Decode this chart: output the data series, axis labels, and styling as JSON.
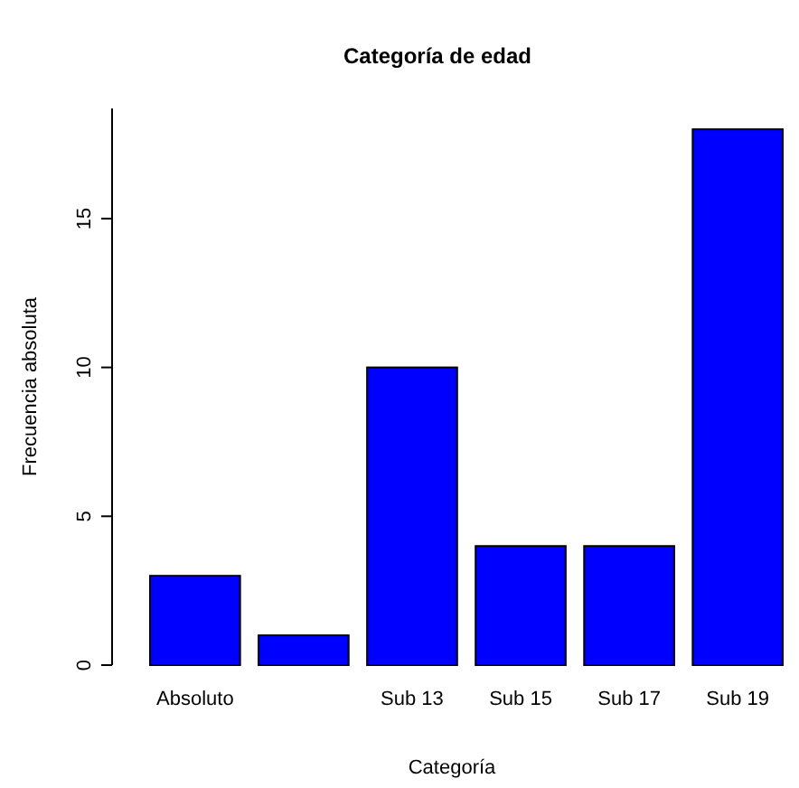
{
  "chart_data": {
    "type": "bar",
    "title": "Categoría de edad",
    "xlabel": "Categoría",
    "ylabel": "Frecuencia absoluta",
    "categories": [
      "Absoluto",
      null,
      "Sub 13",
      "Sub 15",
      "Sub 17",
      "Sub 19"
    ],
    "values": [
      3,
      1,
      10,
      4,
      4,
      18
    ],
    "color": "#0000ff",
    "ylim": [
      0,
      18.7
    ],
    "yticks": [
      0,
      5,
      10,
      15
    ],
    "grid": false
  }
}
